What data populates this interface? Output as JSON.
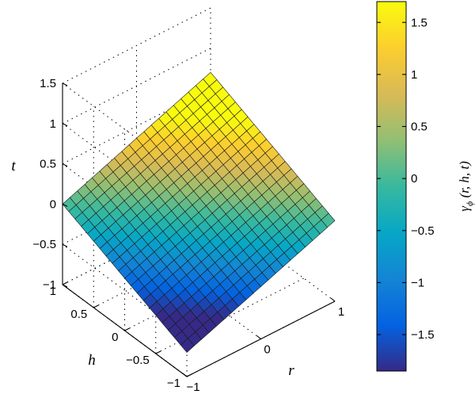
{
  "chart_data": {
    "type": "surface",
    "function": "t = 0.35*r + 0.35*h",
    "r": {
      "label": "r",
      "range": [
        -1,
        1
      ],
      "ticks": [
        "−1",
        "0",
        "1"
      ],
      "tick_values": [
        -1,
        0,
        1
      ]
    },
    "h": {
      "label": "h",
      "range": [
        -1,
        1
      ],
      "ticks": [
        "−1",
        "−0.5",
        "0",
        "0.5",
        "1"
      ],
      "tick_values": [
        -1,
        -0.5,
        0,
        0.5,
        1
      ]
    },
    "t": {
      "label": "t",
      "range": [
        -1,
        1.5
      ],
      "ticks": [
        "−1",
        "−0.5",
        "0",
        "0.5",
        "1",
        "1.5"
      ],
      "tick_values": [
        -1,
        -0.5,
        0,
        0.5,
        1,
        1.5
      ]
    },
    "grid": true,
    "grid_style": "dotted",
    "mesh_resolution": 20,
    "colorbar": {
      "label": "γϕ (r, h, t)",
      "label_parts": {
        "sym": "γ",
        "sub": "ϕ",
        "args": " (r, h, t)"
      },
      "range": [
        -1.85,
        1.7
      ],
      "ticks": [
        "1.5",
        "1",
        "0.5",
        "0",
        "−0.5",
        "−1",
        "−1.5"
      ],
      "tick_values": [
        1.5,
        1,
        0.5,
        0,
        -0.5,
        -1,
        -1.5
      ],
      "colormap": "parula",
      "colors": [
        "#352a87",
        "#0363e1",
        "#1485d4",
        "#06a7c6",
        "#38b99e",
        "#92bf73",
        "#d9ba56",
        "#fcce2e",
        "#f9fb0e"
      ]
    }
  }
}
